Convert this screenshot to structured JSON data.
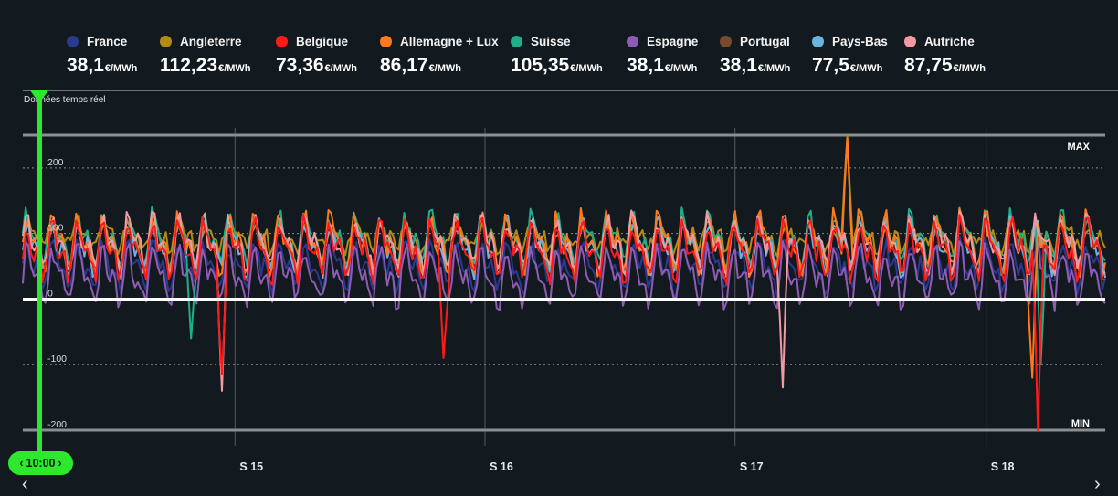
{
  "legend": [
    {
      "name": "France",
      "value": "38,1",
      "unit": "€/MWh",
      "color": "#2b3a8f"
    },
    {
      "name": "Angleterre",
      "value": "112,23",
      "unit": "€/MWh",
      "color": "#b58a12"
    },
    {
      "name": "Belgique",
      "value": "73,36",
      "unit": "€/MWh",
      "color": "#ff1a1a"
    },
    {
      "name": "Allemagne + Lux",
      "value": "86,17",
      "unit": "€/MWh",
      "color": "#ff7a1a"
    },
    {
      "name": "Suisse",
      "value": "105,35",
      "unit": "€/MWh",
      "color": "#1fae8a"
    },
    {
      "name": "Espagne",
      "value": "38,1",
      "unit": "€/MWh",
      "color": "#8e5bb5"
    },
    {
      "name": "Portugal",
      "value": "38,1",
      "unit": "€/MWh",
      "color": "#7a4a2c"
    },
    {
      "name": "Pays-Bas",
      "value": "77,5",
      "unit": "€/MWh",
      "color": "#6db3e0"
    },
    {
      "name": "Autriche",
      "value": "87,75",
      "unit": "€/MWh",
      "color": "#f29aa1"
    }
  ],
  "realtime_label": "Données temps réel",
  "time_pill": {
    "text": "10:00",
    "prev": "‹",
    "next": "›"
  },
  "nav": {
    "left": "‹",
    "right": "›"
  },
  "chart_data": {
    "type": "line",
    "ylim": [
      -200,
      250
    ],
    "max_label": "MAX",
    "min_label": "MIN",
    "y_ticks": [
      {
        "value": 200,
        "label": "200"
      },
      {
        "value": 100,
        "label": "100"
      },
      {
        "value": 0,
        "label": "0"
      },
      {
        "value": -100,
        "label": "-100"
      },
      {
        "value": -200,
        "label": "-200"
      }
    ],
    "x_ticks": [
      {
        "t": 0.196,
        "label": "S 15"
      },
      {
        "t": 0.427,
        "label": "S 16"
      },
      {
        "t": 0.658,
        "label": "S 17"
      },
      {
        "t": 0.89,
        "label": "S 18"
      }
    ],
    "days": 43,
    "series": [
      {
        "name": "France",
        "color": "#2b3a8f",
        "base": 50,
        "amp": 40,
        "seed": 11,
        "spikes": []
      },
      {
        "name": "Espagne",
        "color": "#8e5bb5",
        "base": 35,
        "amp": 50,
        "seed": 23,
        "spikes": []
      },
      {
        "name": "Angleterre",
        "color": "#b58a12",
        "base": 95,
        "amp": 20,
        "seed": 37,
        "spikes": [
          {
            "i": 294,
            "v": 250
          }
        ]
      },
      {
        "name": "Suisse",
        "color": "#1fae8a",
        "base": 90,
        "amp": 45,
        "seed": 41,
        "spikes": [
          {
            "i": 60,
            "v": -60
          },
          {
            "i": 363,
            "v": -100
          }
        ]
      },
      {
        "name": "Pays-Bas",
        "color": "#6db3e0",
        "base": 80,
        "amp": 45,
        "seed": 53,
        "spikes": []
      },
      {
        "name": "Allemagne + Lux",
        "color": "#ff7a1a",
        "base": 85,
        "amp": 50,
        "seed": 59,
        "spikes": [
          {
            "i": 294,
            "v": 245
          },
          {
            "i": 360,
            "v": -120
          }
        ]
      },
      {
        "name": "Autriche",
        "color": "#f29aa1",
        "base": 85,
        "amp": 45,
        "seed": 67,
        "spikes": [
          {
            "i": 71,
            "v": -140
          },
          {
            "i": 271,
            "v": -135
          }
        ]
      },
      {
        "name": "Belgique",
        "color": "#ff1a1a",
        "base": 75,
        "amp": 50,
        "seed": 71,
        "spikes": [
          {
            "i": 71,
            "v": -115
          },
          {
            "i": 150,
            "v": -90
          },
          {
            "i": 362,
            "v": -200
          }
        ]
      }
    ]
  }
}
